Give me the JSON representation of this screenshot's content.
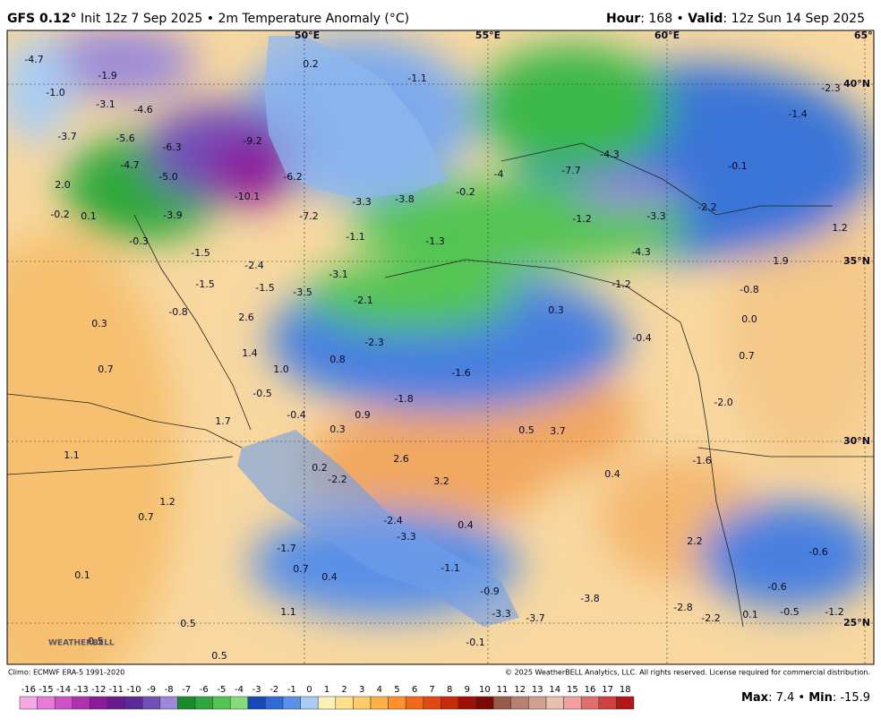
{
  "header": {
    "model": "GFS 0.12°",
    "description": "Init 12z 7 Sep 2025 • 2m Temperature Anomaly (°C)",
    "hour_label": "Hour",
    "hour": ": 168 • ",
    "valid_label": "Valid",
    "valid": ": 12z Sun 14 Sep 2025"
  },
  "map": {
    "lon_labels": [
      "50°E",
      "55°E",
      "60°E",
      "65°E"
    ],
    "lat_labels": [
      "40°N",
      "35°N",
      "30°N",
      "25°N"
    ],
    "values": [
      "-4.7",
      "-1.9",
      "-1.0",
      "-3.1",
      "-4.6",
      "-3.7",
      "-5.6",
      "-6.3",
      "-9.2",
      "-4.7",
      "-5.0",
      "2.0",
      "-6.2",
      "-10.1",
      "-3.3",
      "-3.8",
      "-0.2",
      "-0.2",
      "0.1",
      "-3.9",
      "-7.2",
      "-1.1",
      "-1.3",
      "-0.3",
      "-1.5",
      "-2.4",
      "-3.1",
      "-1.5",
      "-1.5",
      "-3.5",
      "-2.1",
      "-0.8",
      "2.6",
      "0.3",
      "-2.3",
      "1.4",
      "0.8",
      "1.0",
      "0.7",
      "-1.6",
      "-0.5",
      "-1.8",
      "-0.4",
      "0.9",
      "1.7",
      "0.3",
      "0.5",
      "3.7",
      "1.1",
      "2.6",
      "0.2",
      "-2.2",
      "3.2",
      "0.4",
      "1.2",
      "0.7",
      "-2.4",
      "0.4",
      "-3.3",
      "-2.3",
      "-1.4",
      "-0.1",
      "-4.3",
      "-7.7",
      "-4",
      "-1.2",
      "-3.3",
      "-2.2",
      "1.2",
      "-4.3",
      "1.9",
      "-1.2",
      "-0.8",
      "0.3",
      "0.0",
      "-0.4",
      "0.7",
      "-2.0",
      "-1.6",
      "2.2",
      "-0.6",
      "-0.6",
      "-0.9",
      "-1.1",
      "-1.7",
      "0.7",
      "0.4",
      "0.1",
      "1.1",
      "0.5",
      "0.5",
      "0.5",
      "-3.8",
      "-3.3",
      "-3.7",
      "-2.8",
      "-2.2",
      "0.1",
      "-0.5",
      "-1.2",
      "-0.1",
      "0.2",
      "-1.1"
    ],
    "logo": "WEATHERBELL"
  },
  "footer": {
    "climo": "Climo: ECMWF ERA-5 1991-2020",
    "copyright": "© 2025 WeatherBELL Analytics, LLC. All rights reserved. License required for commercial distribution.",
    "max_label": "Max",
    "max": ": 7.4 • ",
    "min_label": "Min",
    "min": ": -15.9"
  },
  "colorbar": {
    "ticks": [
      -16,
      -15,
      -14,
      -13,
      -12,
      -11,
      -10,
      -9,
      -8,
      -7,
      -6,
      -5,
      -4,
      -3,
      -2,
      -1,
      0,
      1,
      2,
      3,
      4,
      5,
      6,
      7,
      8,
      9,
      10,
      11,
      12,
      13,
      14,
      15,
      16,
      17,
      18
    ],
    "colors": [
      "#f7a8e8",
      "#e77cd8",
      "#d050c8",
      "#b030b0",
      "#8c1a9c",
      "#6a1a90",
      "#5a2a9a",
      "#7050b8",
      "#9c8ad8",
      "#1a8a2a",
      "#2ea83a",
      "#52c452",
      "#86dc76",
      "#1848b4",
      "#2f6ad6",
      "#5a90e6",
      "#a8ccf4",
      "#fff0b8",
      "#ffe08a",
      "#ffcc6a",
      "#ffb04a",
      "#ff9030",
      "#f06a1a",
      "#e04a10",
      "#c82a0a",
      "#a01006",
      "#7a0a04",
      "#9a5a4a",
      "#b88070",
      "#d0a090",
      "#e8c0b0",
      "#f0a0a0",
      "#e07070",
      "#d04040",
      "#b01818"
    ]
  }
}
